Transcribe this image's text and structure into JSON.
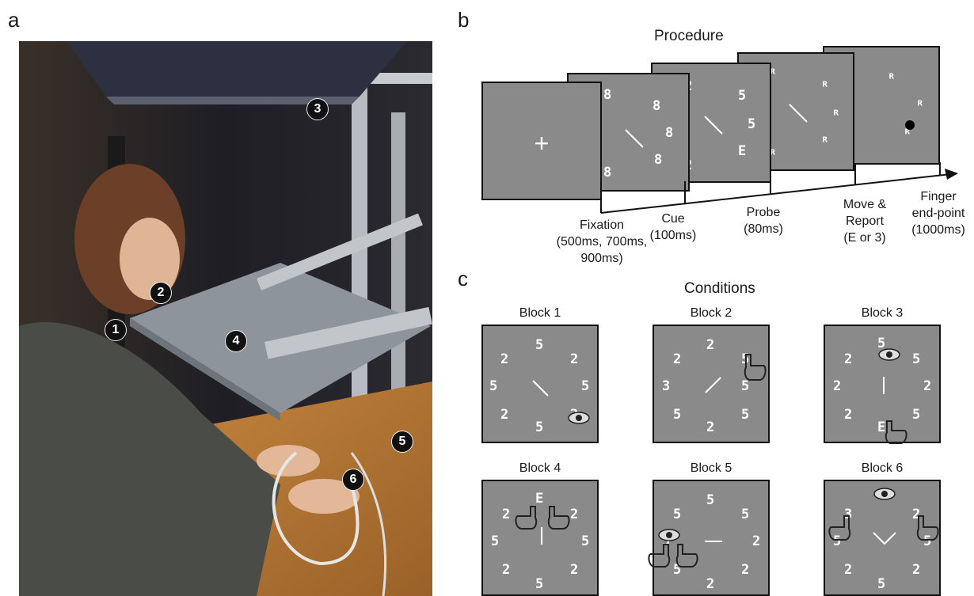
{
  "panels": {
    "a": "a",
    "b": "b",
    "c": "c"
  },
  "photo": {
    "markers": [
      "1",
      "2",
      "3",
      "4",
      "5",
      "6"
    ]
  },
  "procedure": {
    "title": "Procedure",
    "fixation_glyph": "+",
    "stages": [
      {
        "name": "Fixation",
        "detail": "(500ms, 700ms,",
        "detail2": "900ms)"
      },
      {
        "name": "Cue",
        "detail": "(100ms)"
      },
      {
        "name": "Probe",
        "detail": "(80ms)"
      },
      {
        "name": "Move &",
        "detail": "Report",
        "detail2": "(E or 3)"
      },
      {
        "name": "Finger",
        "detail": "end-point",
        "detail2": "(1000ms)"
      }
    ],
    "frame2_glyphs": [
      "8",
      "8",
      "8",
      "8",
      "8"
    ],
    "frame3_glyphs": [
      "2",
      "5",
      "5",
      "E",
      "2"
    ],
    "frame4_glyphs": [
      "ᴿ",
      "ᴿ",
      "ᴿ",
      "ᴿ",
      "ᴿ"
    ],
    "frame5_glyphs": [
      "ᴿ",
      "ᴿ",
      "ᴿ",
      "ᴿ",
      "ᴿ"
    ]
  },
  "conditions": {
    "title": "Conditions",
    "blocks": [
      {
        "title": "Block 1",
        "glyphs": [
          "5",
          "2",
          "5",
          "2",
          "5",
          "2",
          "5",
          "2"
        ]
      },
      {
        "title": "Block 2",
        "glyphs": [
          "2",
          "5",
          "2",
          "3",
          "5",
          "5",
          "5",
          "2"
        ]
      },
      {
        "title": "Block 3",
        "glyphs": [
          "5",
          "5",
          "2",
          "2",
          "2",
          "5",
          "2",
          "E"
        ]
      },
      {
        "title": "Block 4",
        "glyphs": [
          "E",
          "2",
          "5",
          "5",
          "2",
          "2",
          "2",
          "5"
        ]
      },
      {
        "title": "Block 5",
        "glyphs": [
          "5",
          "5",
          "5",
          "2",
          "5",
          "2",
          "5",
          "2"
        ]
      },
      {
        "title": "Block 6",
        "glyphs": [
          "3",
          "2",
          "5",
          "5",
          "2",
          "2",
          "2",
          "5"
        ]
      }
    ]
  }
}
